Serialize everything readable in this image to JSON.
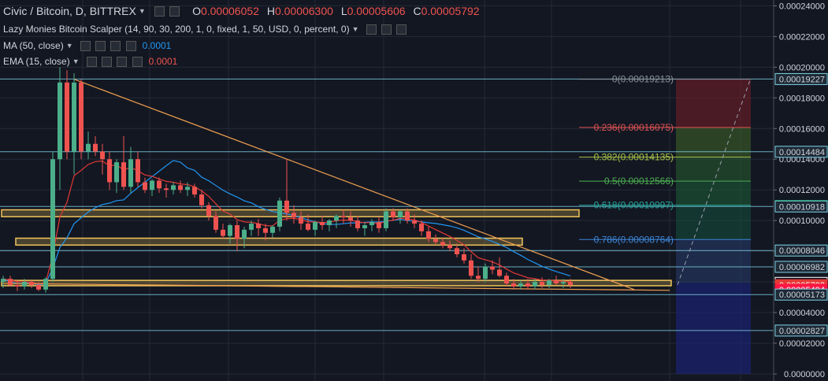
{
  "header": {
    "symbol": "Civic / Bitcoin, D, BITTREX",
    "ohlc": [
      {
        "key": "O",
        "value": "0.00006052"
      },
      {
        "key": "H",
        "value": "0.00006300"
      },
      {
        "key": "L",
        "value": "0.00005606"
      },
      {
        "key": "C",
        "value": "0.00005792"
      }
    ]
  },
  "indicators": [
    {
      "label": "Lazy Monies Bitcoin Scalper (14, 90, 30, 200, 1, 0, fixed, 1, 50, USD, 0, percent, 0)",
      "value": "",
      "color": "#d1d4dc"
    },
    {
      "label": "MA (50, close)",
      "value": "0.0001",
      "color": "#2196f3"
    },
    {
      "label": "EMA (15, close)",
      "value": "0.0001",
      "color": "#ef5350"
    }
  ],
  "chart_data": {
    "type": "candlestick",
    "price_axis": {
      "range": [
        0.0,
        0.000245
      ],
      "ticks": [
        "0.00024000",
        "0.00022000",
        "0.00020000",
        "0.00018000",
        "0.00016000",
        "0.00014000",
        "0.00012000",
        "0.00010000",
        "0.00008000",
        "0.00006000",
        "0.00004000",
        "0.00002000",
        "0.0000000"
      ],
      "tick_values": [
        0.00024,
        0.00022,
        0.0002,
        0.00018,
        0.00016,
        0.00014,
        0.00012,
        0.0001,
        8e-05,
        6e-05,
        4e-05,
        2e-05,
        0.0
      ]
    },
    "candles": [
      [
        6e-05,
        6.4e-05,
        5.6e-05,
        6.2e-05
      ],
      [
        6.2e-05,
        6.4e-05,
        5.7e-05,
        5.8e-05
      ],
      [
        5.8e-05,
        6.1e-05,
        5.4e-05,
        5.7e-05
      ],
      [
        5.7e-05,
        6.2e-05,
        5.5e-05,
        6e-05
      ],
      [
        6e-05,
        6.1e-05,
        5.6e-05,
        5.8e-05
      ],
      [
        5.8e-05,
        6e-05,
        5.4e-05,
        5.5e-05
      ],
      [
        5.5e-05,
        6.3e-05,
        5.3e-05,
        6.2e-05
      ],
      [
        6.2e-05,
        0.000145,
        6e-05,
        0.00014
      ],
      [
        0.00014,
        0.0002,
        0.00012,
        0.00019
      ],
      [
        0.00019,
        0.000198,
        0.00014,
        0.000145
      ],
      [
        0.000145,
        0.000196,
        0.00013,
        0.00019
      ],
      [
        0.00019,
        0.000192,
        0.00014,
        0.000145
      ],
      [
        0.000145,
        0.000158,
        0.00014,
        0.00015
      ],
      [
        0.00015,
        0.000155,
        0.000142,
        0.000145
      ],
      [
        0.000145,
        0.00015,
        0.00013,
        0.00014
      ],
      [
        0.00014,
        0.000145,
        0.00012,
        0.000125
      ],
      [
        0.000125,
        0.00014,
        0.000118,
        0.000138
      ],
      [
        0.000138,
        0.000155,
        0.00012,
        0.000122
      ],
      [
        0.000122,
        0.000148,
        0.000118,
        0.00014
      ],
      [
        0.00014,
        0.000145,
        0.000122,
        0.000125
      ],
      [
        0.000125,
        0.000128,
        0.000118,
        0.00012
      ],
      [
        0.00012,
        0.000127,
        0.000116,
        0.000126
      ],
      [
        0.000126,
        0.000128,
        0.000118,
        0.000121
      ],
      [
        0.000121,
        0.000124,
        0.000115,
        0.00012
      ],
      [
        0.00012,
        0.000125,
        0.000117,
        0.000123
      ],
      [
        0.000123,
        0.000126,
        0.000118,
        0.00012
      ],
      [
        0.00012,
        0.000125,
        0.000116,
        0.000122
      ],
      [
        0.000122,
        0.000124,
        0.000115,
        0.000117
      ],
      [
        0.000117,
        0.00012,
        0.000108,
        0.00011
      ],
      [
        0.00011,
        0.000112,
        0.0001,
        0.000103
      ],
      [
        0.000103,
        0.000106,
        9.2e-05,
        9.4e-05
      ],
      [
        9.4e-05,
        9.8e-05,
        8.8e-05,
        9e-05
      ],
      [
        9e-05,
        9.8e-05,
        8.5e-05,
        9.7e-05
      ],
      [
        9.7e-05,
        0.0001,
        8e-05,
        8.8e-05
      ],
      [
        8.8e-05,
        9.6e-05,
        8.2e-05,
        9.4e-05
      ],
      [
        9.4e-05,
        0.0001,
        9e-05,
        9.8e-05
      ],
      [
        9.8e-05,
        0.000101,
        9e-05,
        9.5e-05
      ],
      [
        9.5e-05,
        9.8e-05,
        8.7e-05,
        9.2e-05
      ],
      [
        9.2e-05,
        9.7e-05,
        8.9e-05,
        9.6e-05
      ],
      [
        9.6e-05,
        0.000115,
        9.3e-05,
        0.000113
      ],
      [
        0.000113,
        0.00014,
        0.0001,
        0.000105
      ],
      [
        0.000105,
        0.00011,
        9.8e-05,
        0.000102
      ],
      [
        0.000102,
        0.000106,
        9.4e-05,
        9.8e-05
      ],
      [
        9.8e-05,
        0.000104,
        9.3e-05,
        9.4e-05
      ],
      [
        9.4e-05,
        0.0001,
        9e-05,
        9.9e-05
      ],
      [
        9.9e-05,
        0.000103,
        9.4e-05,
        9.7e-05
      ],
      [
        9.7e-05,
        0.000101,
        9.3e-05,
        0.0001
      ],
      [
        0.0001,
        0.000104,
        9.5e-05,
        0.000103
      ],
      [
        0.000103,
        0.000107,
        9.8e-05,
        0.000102
      ],
      [
        0.000102,
        0.000106,
        9.6e-05,
        0.0001
      ],
      [
        0.0001,
        0.000103,
        9.3e-05,
        9.5e-05
      ],
      [
        9.5e-05,
        9.9e-05,
        9e-05,
        9.7e-05
      ],
      [
        9.7e-05,
        0.000101,
        9.3e-05,
        9.9e-05
      ],
      [
        9.9e-05,
        0.000102,
        9.2e-05,
        9.5e-05
      ],
      [
        9.5e-05,
        0.000108,
        9.3e-05,
        0.000106
      ],
      [
        0.000106,
        0.000108,
        0.0001,
        0.000102
      ],
      [
        0.000102,
        0.000107,
        9.8e-05,
        0.000106
      ],
      [
        0.000106,
        0.000108,
        9.8e-05,
        0.0001
      ],
      [
        0.0001,
        0.000104,
        9.5e-05,
        9.8e-05
      ],
      [
        9.8e-05,
        0.0001,
        9e-05,
        9.3e-05
      ],
      [
        9.3e-05,
        9.6e-05,
        8.6e-05,
        8.8e-05
      ],
      [
        8.8e-05,
        9.1e-05,
        8.4e-05,
        8.6e-05
      ],
      [
        8.6e-05,
        8.9e-05,
        8.2e-05,
        8.4e-05
      ],
      [
        8.4e-05,
        8.7e-05,
        8e-05,
        8.2e-05
      ],
      [
        8.2e-05,
        8.5e-05,
        7.6e-05,
        7.8e-05
      ],
      [
        7.8e-05,
        8.2e-05,
        7.2e-05,
        7.4e-05
      ],
      [
        7.4e-05,
        7.8e-05,
        6.2e-05,
        6.4e-05
      ],
      [
        6.4e-05,
        7e-05,
        6e-05,
        6.2e-05
      ],
      [
        6.2e-05,
        7.2e-05,
        6e-05,
        7e-05
      ],
      [
        7e-05,
        7.4e-05,
        6.5e-05,
        6.8e-05
      ],
      [
        6.8e-05,
        7.6e-05,
        6.3e-05,
        6.4e-05
      ],
      [
        6.4e-05,
        6.6e-05,
        5.7e-05,
        5.9e-05
      ],
      [
        5.9e-05,
        6.2e-05,
        5.5e-05,
        5.7e-05
      ],
      [
        5.7e-05,
        6.1e-05,
        5.5e-05,
        5.9e-05
      ],
      [
        5.9e-05,
        6.2e-05,
        5.5e-05,
        5.7e-05
      ],
      [
        5.7e-05,
        6.2e-05,
        5.5e-05,
        6e-05
      ],
      [
        6e-05,
        6.3e-05,
        5.6e-05,
        5.8e-05
      ],
      [
        5.8e-05,
        6.2e-05,
        5.6e-05,
        6.1e-05
      ],
      [
        6.1e-05,
        6.4e-05,
        5.8e-05,
        5.9e-05
      ],
      [
        5.9e-05,
        6.2e-05,
        5.6e-05,
        6e-05
      ],
      [
        6e-05,
        6.2e-05,
        5.6e-05,
        5.8e-05
      ]
    ],
    "fib_levels": [
      {
        "label": "0(0.00019213)",
        "value": 0.00019213
      },
      {
        "label": "0.236(0.00016075)",
        "value": 0.00016075
      },
      {
        "label": "0.382(0.00014135)",
        "value": 0.00014135
      },
      {
        "label": "0.5(0.00012566)",
        "value": 0.00012566
      },
      {
        "label": "0.618(0.00010997)",
        "value": 0.00010997
      },
      {
        "label": "0.786(0.00008764)",
        "value": 8.764e-05
      }
    ],
    "horizontal_lines": [
      0.00019227,
      0.00014484,
      0.00010918,
      8.046e-05,
      6.982e-05,
      5.173e-05,
      2.827e-05
    ],
    "price_labels": [
      {
        "text": "0.00019227",
        "value": 0.00019227,
        "style": "line"
      },
      {
        "text": "0.00014484",
        "value": 0.00014484,
        "style": "line"
      },
      {
        "text": "0.00010944",
        "value": 0.00010944,
        "style": "green"
      },
      {
        "text": "0.00010918",
        "value": 0.00010918,
        "style": "line"
      },
      {
        "text": "0.00008046",
        "value": 8.046e-05,
        "style": "line"
      },
      {
        "text": "0.00006982",
        "value": 6.982e-05,
        "style": "line"
      },
      {
        "text": "0.00005937",
        "value": 5.937e-05,
        "style": "dark"
      },
      {
        "text": "0.00005792",
        "value": 5.792e-05,
        "style": "red"
      },
      {
        "text": "0.00005494",
        "value": 5.494e-05,
        "style": "brightred"
      },
      {
        "text": "0.00005173",
        "value": 5.173e-05,
        "style": "line"
      },
      {
        "text": "0.00002827",
        "value": 2.827e-05,
        "style": "line"
      }
    ],
    "zones": [
      {
        "from": 0.000107,
        "to": 0.0001025,
        "start_index": 0,
        "end_index": 81
      },
      {
        "from": 8.85e-05,
        "to": 8.4e-05,
        "start_index": 2,
        "end_index": 73
      },
      {
        "from": 6.1e-05,
        "to": 5.75e-05,
        "start_index": 0,
        "end_index": 94
      }
    ],
    "trendline": {
      "from": [
        10,
        0.00019213
      ],
      "to": [
        89,
        5.5e-05
      ]
    },
    "support_line": {
      "from": [
        0,
        5.9e-05
      ],
      "to": [
        94,
        5.45e-05
      ]
    },
    "colors": {
      "background": "#131722",
      "grid": "#252a36",
      "bull": "#4caf8a",
      "bear": "#ef5350",
      "ma": "#2196f3",
      "ema": "#e53935",
      "fib_0": "#8a8f98",
      "fib_0236": "#e05252",
      "fib_0382": "#a8c34a",
      "fib_05": "#4caf50",
      "fib_0618": "#26a69a",
      "fib_0786": "#3d86d8",
      "hline": "#7fd4e8",
      "zone": "#f0c45a",
      "trend": "#f0a050",
      "target": "#1a237e"
    }
  }
}
